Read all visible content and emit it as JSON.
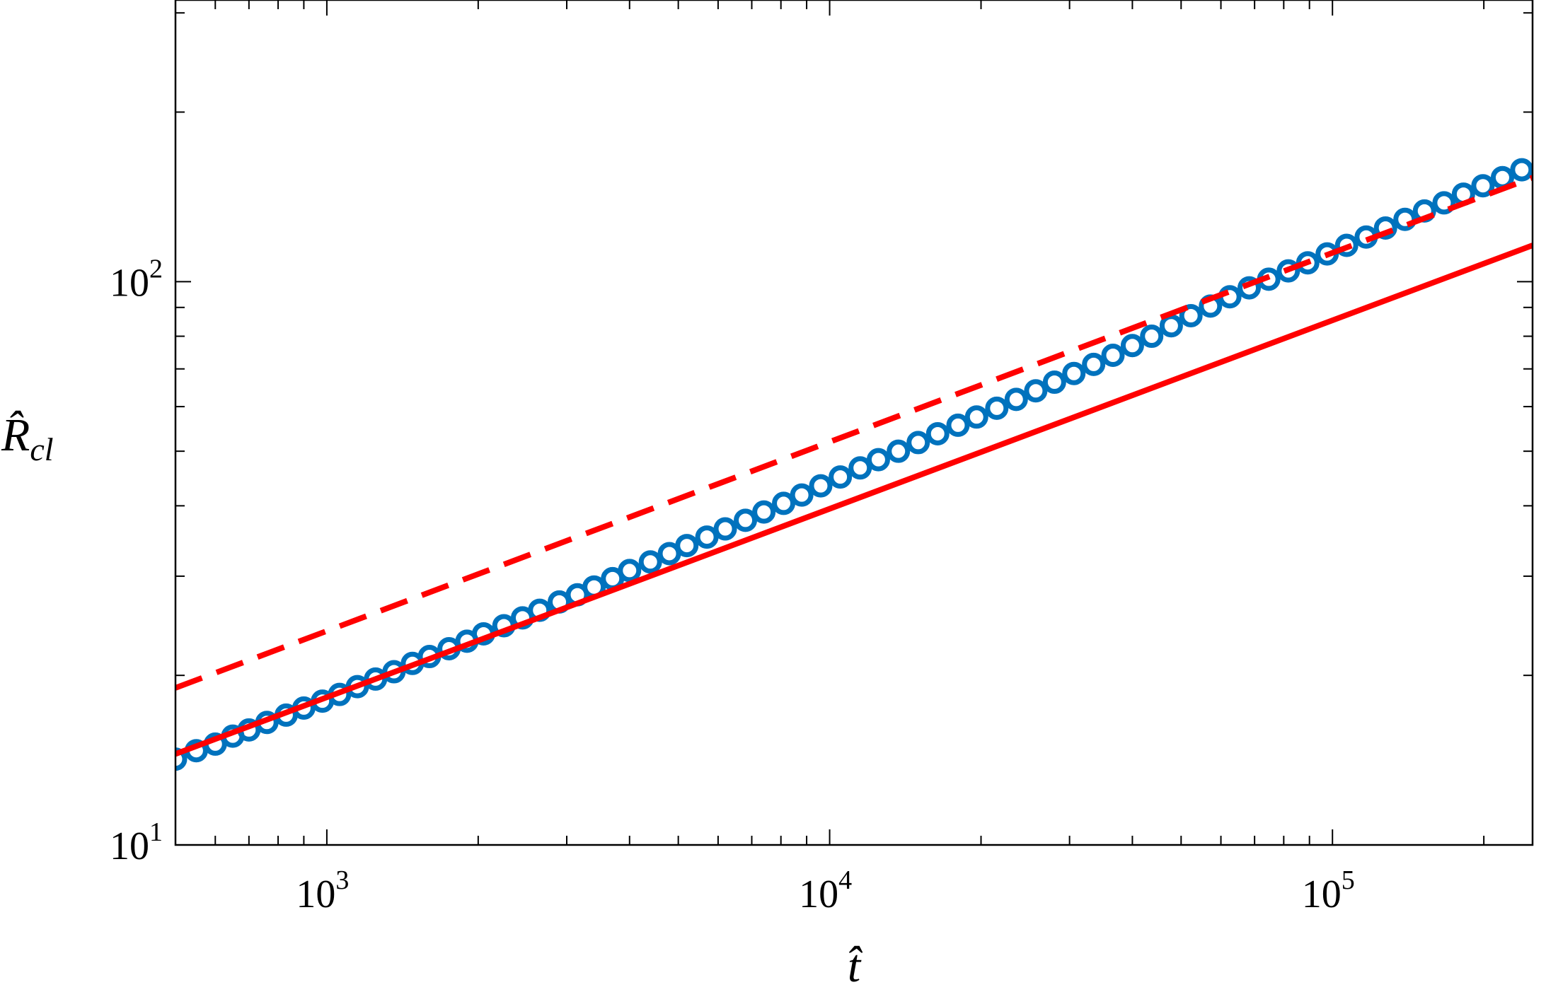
{
  "chart_data": {
    "type": "scatter",
    "title": "",
    "xlabel": "t̂",
    "ylabel": {
      "main": "R̂",
      "sub": "cl"
    },
    "x_scale": "log",
    "y_scale": "log",
    "xlim": [
      500,
      250000
    ],
    "ylim": [
      10,
      316.23
    ],
    "grid": false,
    "legend": "none",
    "x_ticks": [
      {
        "value": 1000,
        "base": "10",
        "exp": "3"
      },
      {
        "value": 10000,
        "base": "10",
        "exp": "4"
      },
      {
        "value": 100000,
        "base": "10",
        "exp": "5"
      }
    ],
    "y_ticks": [
      {
        "value": 10,
        "base": "10",
        "exp": "1"
      },
      {
        "value": 100,
        "base": "10",
        "exp": "2"
      }
    ],
    "series": [
      {
        "style": "markers",
        "marker": "open-circle",
        "color": "#0072bd",
        "x": [
          500,
          550,
          600,
          650,
          700,
          760,
          830,
          900,
          980,
          1060,
          1150,
          1250,
          1360,
          1480,
          1600,
          1750,
          1900,
          2050,
          2250,
          2450,
          2650,
          2900,
          3150,
          3400,
          3700,
          4000,
          4400,
          4800,
          5200,
          5700,
          6200,
          6800,
          7400,
          8100,
          8800,
          9600,
          10500,
          11500,
          12500,
          13700,
          15000,
          16400,
          18000,
          19600,
          21500,
          23500,
          25700,
          28000,
          30600,
          33500,
          36600,
          40000,
          43700,
          47800,
          52300,
          57200,
          62500,
          68300,
          74700,
          81700,
          89300,
          97600,
          106700,
          116700,
          127500,
          139400,
          152400,
          166700,
          182200,
          199200,
          217800,
          238000
        ],
        "y": [
          14.2,
          14.7,
          15.1,
          15.6,
          16.0,
          16.5,
          17.0,
          17.5,
          18.0,
          18.5,
          19.1,
          19.7,
          20.3,
          21.0,
          21.6,
          22.3,
          23.0,
          23.7,
          24.5,
          25.3,
          26.1,
          27.0,
          27.8,
          28.7,
          29.7,
          30.7,
          31.8,
          32.9,
          34.0,
          35.2,
          36.4,
          37.7,
          39.0,
          40.4,
          41.8,
          43.4,
          45.0,
          46.7,
          48.3,
          50.0,
          51.8,
          53.7,
          55.6,
          57.5,
          59.6,
          61.8,
          64.0,
          66.3,
          68.7,
          71.3,
          74.0,
          77.0,
          80.0,
          83.5,
          87.0,
          90.5,
          94.0,
          97.5,
          101.0,
          104.5,
          108.0,
          112.0,
          116.0,
          120.0,
          124.5,
          129.0,
          133.5,
          138.0,
          143.0,
          148.0,
          153.0,
          158.0
        ]
      },
      {
        "style": "solid-line",
        "color": "#ff0000",
        "x": [
          500,
          250000
        ],
        "y": [
          14.5,
          116.0
        ]
      },
      {
        "style": "dashed-line",
        "color": "#ff0000",
        "x": [
          500,
          250000
        ],
        "y": [
          19.0,
          153.0
        ]
      }
    ]
  }
}
